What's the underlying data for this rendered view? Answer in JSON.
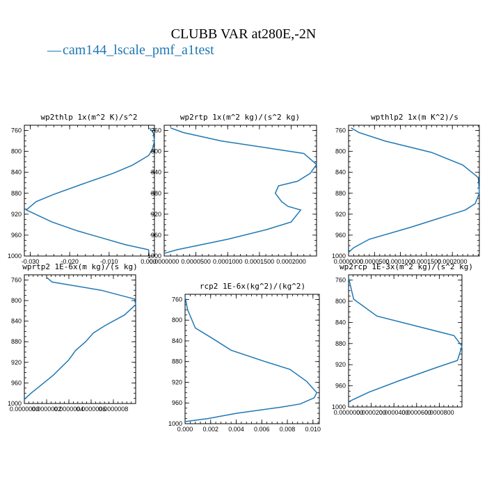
{
  "title": "CLUBB VAR at280E,-2N",
  "legend": [
    {
      "label": "cam144_lscale_pmf_a1test",
      "marker": "—",
      "color": "#1f77b4"
    }
  ],
  "series_color": "#1f77b4",
  "chart_data": [
    {
      "type": "line",
      "title": "wp2thlp  1x(m^2 K)/s^2",
      "xlim": [
        -0.0315,
        0.0015
      ],
      "ylim": [
        1000,
        750
      ],
      "x_ticks": [
        -0.03,
        -0.02,
        -0.01,
        0.0
      ],
      "x_tick_labels": [
        "-0.030",
        "-0.020",
        "-0.010",
        "0.000"
      ],
      "y_ticks": [
        760,
        800,
        840,
        880,
        920,
        960,
        1000
      ],
      "x": [
        0.0002,
        0.0012,
        0.0015,
        0.001,
        0.0,
        -0.004,
        -0.009,
        -0.017,
        -0.024,
        -0.0285,
        -0.031,
        -0.0245,
        -0.018,
        -0.012,
        -0.006,
        0.0,
        0.0001
      ],
      "y": [
        755,
        764,
        780,
        796,
        808,
        826,
        842,
        863,
        882,
        896,
        912,
        935,
        952,
        965,
        978,
        988,
        995
      ]
    },
    {
      "type": "line",
      "title": "wp2rtp  1x(m^2 kg)/(s^2 kg)",
      "xlim": [
        0.0,
        0.00024
      ],
      "ylim": [
        1000,
        750
      ],
      "x_ticks": [
        0.0,
        5e-05,
        0.0001,
        0.00015,
        0.0002
      ],
      "x_tick_labels": [
        "0.0000000",
        "0.0000500",
        "0.0001000",
        "0.0001500",
        "0.0002000"
      ],
      "y_ticks": [
        760,
        800,
        840,
        880,
        920,
        960,
        1000
      ],
      "x": [
        1e-05,
        3e-05,
        9e-05,
        0.00022,
        0.00024,
        0.00023,
        0.00021,
        0.00018,
        0.000175,
        0.000185,
        0.000195,
        0.000215,
        0.0002,
        0.00016,
        0.0001,
        2e-05,
        0.0
      ],
      "y": [
        755,
        764,
        780,
        804,
        825,
        842,
        857,
        866,
        880,
        896,
        905,
        912,
        935,
        950,
        968,
        988,
        995
      ]
    },
    {
      "type": "line",
      "title": "wpthlp2  1x(m K^2)/s",
      "xlim": [
        0.0,
        0.000252
      ],
      "ylim": [
        1000,
        750
      ],
      "x_ticks": [
        0.0,
        5e-05,
        0.0001,
        0.00015,
        0.0002
      ],
      "x_tick_labels": [
        "0.0000000",
        "0.0000500",
        "0.0001000",
        "0.0001500",
        "0.0002000"
      ],
      "y_ticks": [
        760,
        800,
        840,
        880,
        920,
        960,
        1000
      ],
      "x": [
        5e-06,
        2e-05,
        7e-05,
        0.00016,
        0.00022,
        0.00025,
        0.000252,
        0.000244,
        0.000225,
        0.00012,
        4e-05,
        1e-05,
        0.0
      ],
      "y": [
        755,
        764,
        780,
        802,
        826,
        850,
        880,
        900,
        912,
        945,
        968,
        984,
        993
      ]
    },
    {
      "type": "line",
      "title": "wprtp2  1E-6x(m kg)/(s kg)",
      "xlim": [
        0.0,
        1e-06
      ],
      "ylim": [
        1000,
        750
      ],
      "x_ticks": [
        0.0,
        2e-07,
        4e-07,
        6e-07,
        8e-07
      ],
      "x_tick_labels": [
        "0.0000000",
        "0.0000002",
        "0.0000004",
        "0.0000006",
        "0.0000008"
      ],
      "y_ticks": [
        760,
        800,
        840,
        880,
        920,
        960,
        1000
      ],
      "x": [
        2e-07,
        2.5e-07,
        6.9e-07,
        9.9e-07,
        1e-06,
        9e-07,
        7.3e-07,
        6.2e-07,
        5.5e-07,
        4.6e-07,
        4e-07,
        2.6e-07,
        6e-08,
        0.0
      ],
      "y": [
        755,
        764,
        780,
        797,
        808,
        828,
        848,
        863,
        880,
        897,
        915,
        945,
        980,
        992
      ]
    },
    {
      "type": "line",
      "title": "rcp2  1E-6x(kg^2)/(kg^2)",
      "xlim": [
        0.0,
        0.0105
      ],
      "ylim": [
        1000,
        750
      ],
      "x_ticks": [
        0.0,
        0.002,
        0.004,
        0.006,
        0.008,
        0.01
      ],
      "x_tick_labels": [
        "0.000",
        "0.002",
        "0.004",
        "0.006",
        "0.008",
        "0.010"
      ],
      "y_ticks": [
        760,
        800,
        840,
        880,
        920,
        960,
        1000
      ],
      "x": [
        0.0,
        0.0002,
        0.0008,
        0.002,
        0.0036,
        0.006,
        0.0082,
        0.0095,
        0.0103,
        0.0101,
        0.009,
        0.0075,
        0.004,
        0.0018,
        0.0
      ],
      "y": [
        755,
        780,
        815,
        833,
        858,
        878,
        895,
        918,
        940,
        950,
        962,
        968,
        980,
        990,
        996
      ]
    },
    {
      "type": "line",
      "title": "wp2rcp  1E-3x(m^2 kg)/(s^2 kg)",
      "xlim": [
        0.0,
        0.0001
      ],
      "ylim": [
        1000,
        750
      ],
      "x_ticks": [
        0.0,
        2e-05,
        4e-05,
        6e-05,
        8e-05
      ],
      "x_tick_labels": [
        "0.0000000",
        "0.0000200",
        "0.0000400",
        "0.0000600",
        "0.0000800"
      ],
      "y_ticks": [
        760,
        800,
        840,
        880,
        920,
        960,
        1000
      ],
      "x": [
        0.0,
        4.5e-06,
        2.5e-05,
        9.3e-05,
        0.0001,
        9.6e-05,
        7.8e-05,
        4.5e-05,
        1.8e-05,
        0.0
      ],
      "y": [
        755,
        796,
        828,
        865,
        885,
        912,
        925,
        950,
        972,
        990
      ]
    }
  ]
}
